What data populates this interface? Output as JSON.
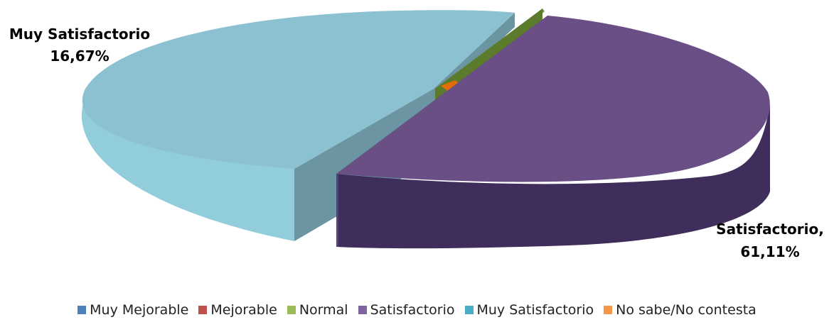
{
  "chart_data": {
    "type": "pie",
    "style": "3d-exploded",
    "categories": [
      "Muy Mejorable",
      "Mejorable",
      "Normal",
      "Satisfactorio",
      "Muy Satisfactorio",
      "No sabe/No contesta"
    ],
    "values": [
      0,
      0,
      1.5,
      61.11,
      16.67,
      1.5
    ],
    "colors": [
      "#4F81BD",
      "#C0504D",
      "#9BBB59",
      "#8064A2",
      "#4BACC6",
      "#F79646"
    ],
    "data_labels": [
      {
        "category": "Muy Satisfactorio",
        "line1": "Muy Satisfactorio",
        "line2": "16,67%"
      },
      {
        "category": "Satisfactorio",
        "line1": "Satisfactorio,",
        "line2": "61,11%"
      }
    ],
    "legend_position": "bottom"
  }
}
